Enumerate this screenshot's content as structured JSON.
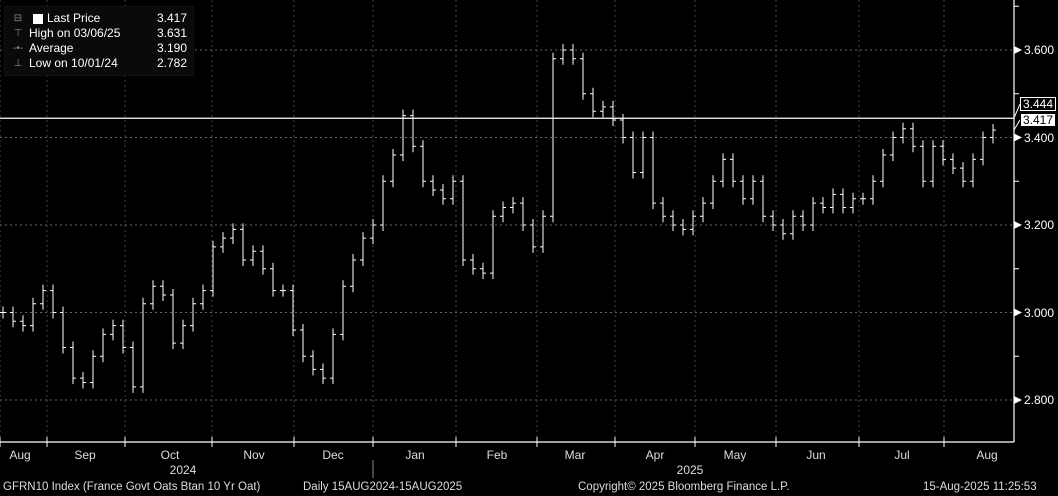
{
  "legend": {
    "items": [
      {
        "label": "Last Price",
        "value": "3.417",
        "icon": "square-swatch-icon"
      },
      {
        "label": "High on 03/06/25",
        "value": "3.631",
        "icon": "high-marker-icon"
      },
      {
        "label": "Average",
        "value": "3.190",
        "icon": "average-marker-icon"
      },
      {
        "label": "Low on 10/01/24",
        "value": "2.782",
        "icon": "low-marker-icon"
      }
    ]
  },
  "footer": {
    "ticker": "GFRN10 Index (France Govt Oats Btan 10 Yr Oat)",
    "range": "Daily 15AUG2024-15AUG2025",
    "copyright": "Copyright© 2025 Bloomberg Finance L.P.",
    "timestamp": "15-Aug-2025 11:25:53"
  },
  "chart_data": {
    "type": "bar",
    "style": "price bars (daily), white on black",
    "x_months": [
      "Aug",
      "Sep",
      "Oct",
      "Nov",
      "Dec",
      "Jan",
      "Feb",
      "Mar",
      "Apr",
      "May",
      "Jun",
      "Jul",
      "Aug"
    ],
    "x_years": [
      "2024",
      "2025"
    ],
    "y_ticks": [
      "2.800",
      "3.000",
      "3.200",
      "3.400",
      "3.600"
    ],
    "ylim": [
      2.69,
      3.7
    ],
    "grid": true,
    "reference_line": {
      "value": 3.444,
      "label": "3.444"
    },
    "last_price_tag": "3.417",
    "legend_placement": "top-left",
    "series": [
      {
        "name": "Last Price",
        "approx_closes": [
          3.0,
          2.98,
          2.97,
          3.02,
          3.05,
          3.0,
          2.92,
          2.85,
          2.84,
          2.9,
          2.95,
          2.97,
          2.92,
          2.83,
          3.02,
          3.06,
          3.04,
          2.93,
          2.97,
          3.02,
          3.05,
          3.15,
          3.17,
          3.19,
          3.12,
          3.14,
          3.1,
          3.05,
          3.05,
          2.96,
          2.9,
          2.87,
          2.85,
          2.95,
          3.06,
          3.12,
          3.17,
          3.2,
          3.3,
          3.36,
          3.45,
          3.38,
          3.3,
          3.28,
          3.26,
          3.3,
          3.12,
          3.1,
          3.09,
          3.22,
          3.24,
          3.25,
          3.2,
          3.15,
          3.22,
          3.58,
          3.6,
          3.58,
          3.5,
          3.46,
          3.47,
          3.44,
          3.4,
          3.32,
          3.4,
          3.25,
          3.22,
          3.2,
          3.19,
          3.22,
          3.25,
          3.3,
          3.35,
          3.3,
          3.26,
          3.3,
          3.22,
          3.2,
          3.18,
          3.22,
          3.2,
          3.25,
          3.24,
          3.27,
          3.24,
          3.26,
          3.26,
          3.3,
          3.36,
          3.4,
          3.42,
          3.38,
          3.3,
          3.38,
          3.35,
          3.33,
          3.3,
          3.35,
          3.4,
          3.417
        ]
      }
    ]
  }
}
